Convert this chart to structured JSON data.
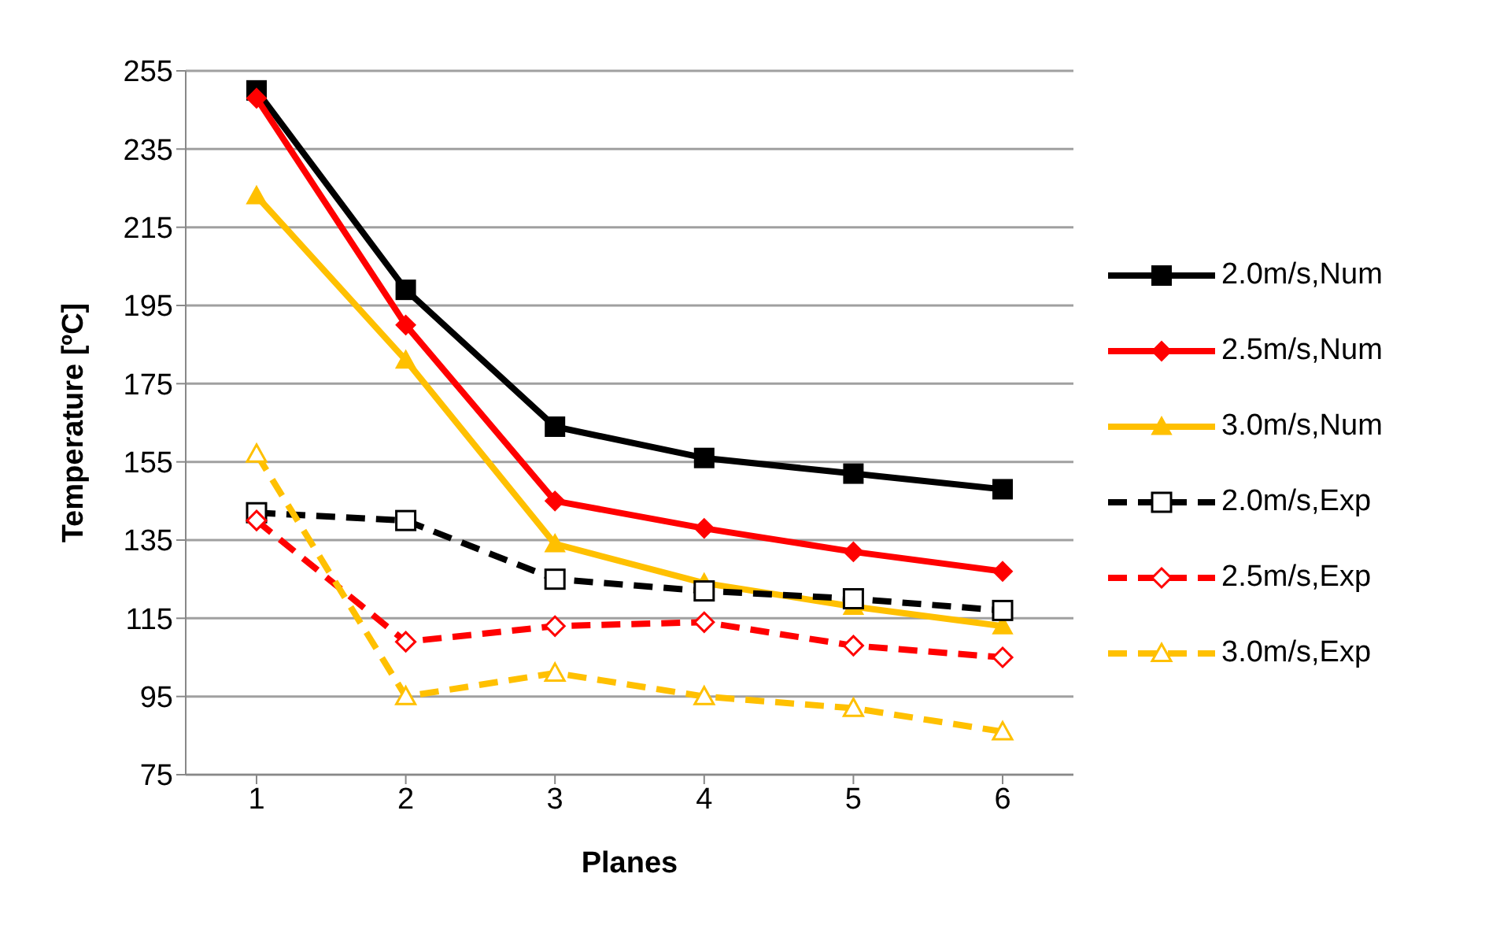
{
  "chart_data": {
    "type": "line",
    "xlabel": "Planes",
    "ylabel": "Temperature [ºC]",
    "categories": [
      "1",
      "2",
      "3",
      "4",
      "5",
      "6"
    ],
    "ylim": [
      75,
      255
    ],
    "yticks": [
      75,
      95,
      115,
      135,
      155,
      175,
      195,
      215,
      235,
      255
    ],
    "grid": "y",
    "legend": "right",
    "series": [
      {
        "name": "2.0m/s,Num",
        "color": "#000000",
        "marker": "square",
        "line_style": "solid",
        "values": [
          250,
          199,
          164,
          156,
          152,
          148
        ]
      },
      {
        "name": "2.5m/s,Num",
        "color": "#ff0000",
        "marker": "diamond",
        "line_style": "solid",
        "values": [
          248,
          190,
          145,
          138,
          132,
          127
        ]
      },
      {
        "name": "3.0m/s,Num",
        "color": "#ffc000",
        "marker": "triangle",
        "line_style": "solid",
        "values": [
          223,
          181,
          134,
          124,
          118,
          113
        ]
      },
      {
        "name": "2.0m/s,Exp",
        "color": "#000000",
        "marker": "square",
        "line_style": "dashed",
        "values": [
          142,
          140,
          125,
          122,
          120,
          117
        ]
      },
      {
        "name": "2.5m/s,Exp",
        "color": "#ff0000",
        "marker": "diamond",
        "line_style": "dashed",
        "values": [
          140,
          109,
          113,
          114,
          108,
          105
        ]
      },
      {
        "name": "3.0m/s,Exp",
        "color": "#ffc000",
        "marker": "triangle",
        "line_style": "dashed",
        "values": [
          157,
          95,
          101,
          95,
          92,
          86
        ]
      }
    ]
  }
}
